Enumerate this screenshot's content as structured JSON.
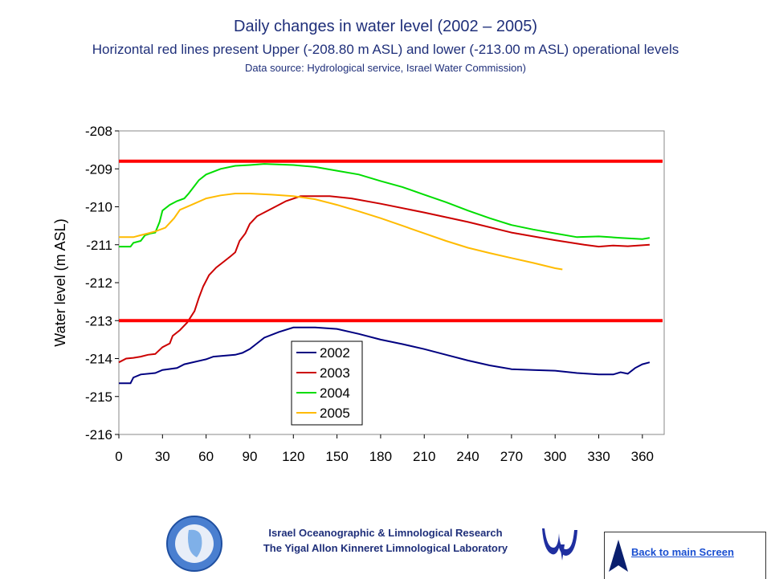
{
  "header": {
    "title": "Daily changes in water level (2002 – 2005)",
    "subtitle": "Horizontal red lines present Upper (-208.80 m ASL) and lower (-213.00 m ASL) operational levels",
    "source": "Data source: Hydrological service, Israel Water Commission)"
  },
  "footer": {
    "line1": "Israel Oceanographic & Limnological Research",
    "line2": "The Yigal Allon Kinneret Limnological Laboratory",
    "back_link": "Back to main Screen"
  },
  "chart_data": {
    "type": "line",
    "title": "",
    "xlabel": "",
    "ylabel": "Water level (m ASL)",
    "xlim": [
      0,
      375
    ],
    "ylim": [
      -216,
      -208
    ],
    "xticks": [
      0,
      30,
      60,
      90,
      120,
      150,
      180,
      210,
      240,
      270,
      300,
      330,
      360
    ],
    "yticks": [
      -216,
      -215,
      -214,
      -213,
      -212,
      -211,
      -210,
      -209,
      -208
    ],
    "grid": false,
    "legend_position": "center",
    "reference_lines": [
      {
        "y": -208.8,
        "color": "#ff0000"
      },
      {
        "y": -213.0,
        "color": "#ff0000"
      }
    ],
    "series": [
      {
        "name": "2002",
        "color": "#000080",
        "points": [
          [
            0,
            -214.65
          ],
          [
            8,
            -214.65
          ],
          [
            10,
            -214.5
          ],
          [
            15,
            -214.42
          ],
          [
            25,
            -214.38
          ],
          [
            30,
            -214.3
          ],
          [
            40,
            -214.25
          ],
          [
            45,
            -214.15
          ],
          [
            60,
            -214.02
          ],
          [
            65,
            -213.95
          ],
          [
            80,
            -213.9
          ],
          [
            85,
            -213.85
          ],
          [
            90,
            -213.75
          ],
          [
            95,
            -213.6
          ],
          [
            100,
            -213.45
          ],
          [
            110,
            -213.3
          ],
          [
            120,
            -213.18
          ],
          [
            135,
            -213.18
          ],
          [
            150,
            -213.22
          ],
          [
            165,
            -213.35
          ],
          [
            180,
            -213.5
          ],
          [
            195,
            -213.62
          ],
          [
            210,
            -213.75
          ],
          [
            225,
            -213.9
          ],
          [
            240,
            -214.05
          ],
          [
            255,
            -214.18
          ],
          [
            270,
            -214.28
          ],
          [
            285,
            -214.3
          ],
          [
            300,
            -214.32
          ],
          [
            315,
            -214.38
          ],
          [
            330,
            -214.42
          ],
          [
            340,
            -214.42
          ],
          [
            345,
            -214.36
          ],
          [
            350,
            -214.4
          ],
          [
            355,
            -214.25
          ],
          [
            360,
            -214.15
          ],
          [
            365,
            -214.1
          ]
        ]
      },
      {
        "name": "2003",
        "color": "#cc0000",
        "points": [
          [
            0,
            -214.1
          ],
          [
            5,
            -214.0
          ],
          [
            10,
            -213.98
          ],
          [
            15,
            -213.95
          ],
          [
            20,
            -213.9
          ],
          [
            25,
            -213.88
          ],
          [
            30,
            -213.7
          ],
          [
            35,
            -213.6
          ],
          [
            37,
            -213.4
          ],
          [
            42,
            -213.25
          ],
          [
            47,
            -213.05
          ],
          [
            52,
            -212.75
          ],
          [
            55,
            -212.4
          ],
          [
            58,
            -212.1
          ],
          [
            62,
            -211.8
          ],
          [
            67,
            -211.6
          ],
          [
            72,
            -211.45
          ],
          [
            77,
            -211.3
          ],
          [
            80,
            -211.2
          ],
          [
            83,
            -210.9
          ],
          [
            87,
            -210.7
          ],
          [
            90,
            -210.45
          ],
          [
            95,
            -210.25
          ],
          [
            105,
            -210.05
          ],
          [
            115,
            -209.85
          ],
          [
            125,
            -209.72
          ],
          [
            145,
            -209.72
          ],
          [
            160,
            -209.78
          ],
          [
            180,
            -209.92
          ],
          [
            210,
            -210.15
          ],
          [
            240,
            -210.4
          ],
          [
            270,
            -210.68
          ],
          [
            300,
            -210.88
          ],
          [
            320,
            -211.0
          ],
          [
            330,
            -211.05
          ],
          [
            340,
            -211.02
          ],
          [
            350,
            -211.04
          ],
          [
            365,
            -211.0
          ]
        ]
      },
      {
        "name": "2004",
        "color": "#00dd00",
        "points": [
          [
            0,
            -211.05
          ],
          [
            8,
            -211.05
          ],
          [
            10,
            -210.95
          ],
          [
            15,
            -210.9
          ],
          [
            18,
            -210.75
          ],
          [
            22,
            -210.7
          ],
          [
            25,
            -210.68
          ],
          [
            28,
            -210.4
          ],
          [
            30,
            -210.1
          ],
          [
            35,
            -209.95
          ],
          [
            40,
            -209.85
          ],
          [
            45,
            -209.78
          ],
          [
            48,
            -209.65
          ],
          [
            52,
            -209.45
          ],
          [
            55,
            -209.3
          ],
          [
            60,
            -209.15
          ],
          [
            70,
            -209.0
          ],
          [
            80,
            -208.92
          ],
          [
            90,
            -208.9
          ],
          [
            100,
            -208.87
          ],
          [
            120,
            -208.9
          ],
          [
            135,
            -208.95
          ],
          [
            150,
            -209.05
          ],
          [
            165,
            -209.15
          ],
          [
            180,
            -209.32
          ],
          [
            195,
            -209.48
          ],
          [
            210,
            -209.68
          ],
          [
            225,
            -209.88
          ],
          [
            240,
            -210.1
          ],
          [
            255,
            -210.3
          ],
          [
            270,
            -210.48
          ],
          [
            285,
            -210.6
          ],
          [
            300,
            -210.7
          ],
          [
            315,
            -210.8
          ],
          [
            330,
            -210.78
          ],
          [
            345,
            -210.82
          ],
          [
            360,
            -210.85
          ],
          [
            365,
            -210.82
          ]
        ]
      },
      {
        "name": "2005",
        "color": "#ffbb00",
        "points": [
          [
            0,
            -210.8
          ],
          [
            10,
            -210.8
          ],
          [
            15,
            -210.75
          ],
          [
            20,
            -210.7
          ],
          [
            25,
            -210.65
          ],
          [
            32,
            -210.55
          ],
          [
            38,
            -210.3
          ],
          [
            42,
            -210.08
          ],
          [
            50,
            -209.95
          ],
          [
            60,
            -209.78
          ],
          [
            70,
            -209.7
          ],
          [
            80,
            -209.65
          ],
          [
            90,
            -209.65
          ],
          [
            105,
            -209.68
          ],
          [
            120,
            -209.72
          ],
          [
            135,
            -209.8
          ],
          [
            150,
            -209.95
          ],
          [
            165,
            -210.12
          ],
          [
            180,
            -210.3
          ],
          [
            195,
            -210.5
          ],
          [
            210,
            -210.7
          ],
          [
            225,
            -210.9
          ],
          [
            240,
            -211.08
          ],
          [
            255,
            -211.22
          ],
          [
            270,
            -211.35
          ],
          [
            285,
            -211.48
          ],
          [
            300,
            -211.62
          ],
          [
            305,
            -211.65
          ]
        ]
      }
    ]
  }
}
